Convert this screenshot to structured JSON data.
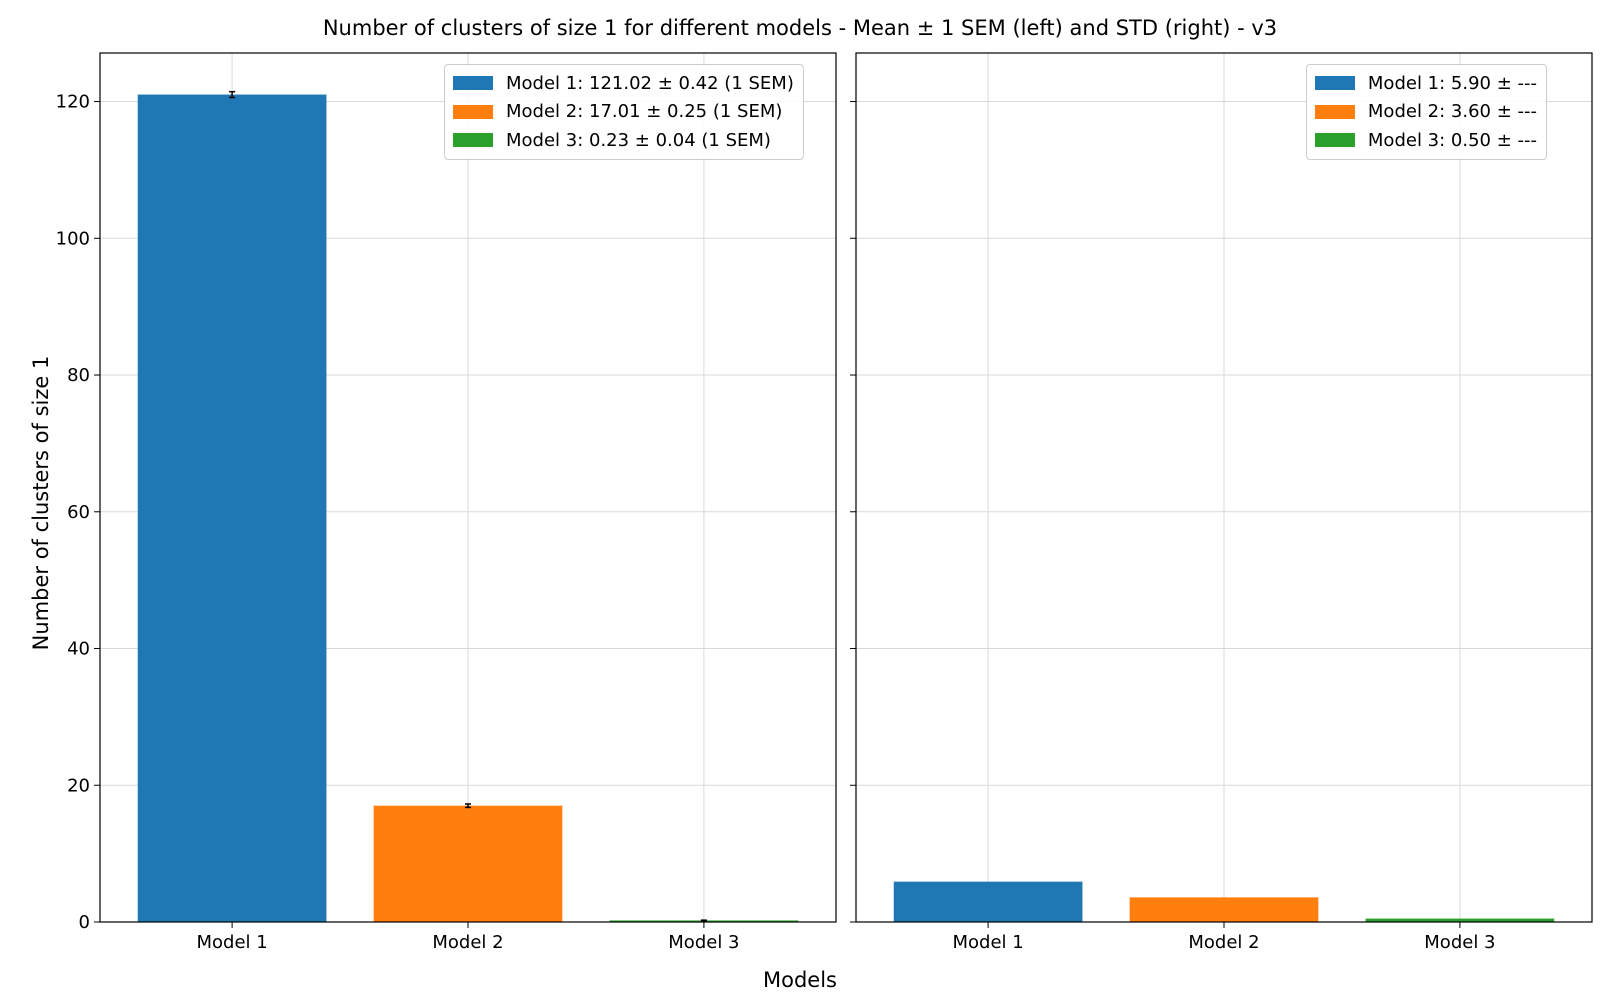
{
  "figure": {
    "title": "Number of clusters of size 1 for different models - Mean ± 1 SEM (left) and STD (right) - v3",
    "xlabel": "Models",
    "ylabel": "Number of clusters of size 1"
  },
  "chart_data": [
    {
      "type": "bar",
      "panel": "left",
      "categories": [
        "Model 1",
        "Model 2",
        "Model 3"
      ],
      "values": [
        121.02,
        17.01,
        0.23
      ],
      "error": [
        0.42,
        0.25,
        0.04
      ],
      "colors": [
        "#1f77b4",
        "#ff7f0e",
        "#2ca02c"
      ],
      "ylim": [
        0,
        127.1
      ],
      "yticks": [
        0,
        20,
        40,
        60,
        80,
        100,
        120
      ],
      "grid": true,
      "legend_position": "top-right",
      "legend": [
        "Model 1: 121.02 ± 0.42 (1 SEM)",
        "Model 2: 17.01 ± 0.25 (1 SEM)",
        "Model 3: 0.23 ± 0.04 (1 SEM)"
      ]
    },
    {
      "type": "bar",
      "panel": "right",
      "categories": [
        "Model 1",
        "Model 2",
        "Model 3"
      ],
      "values": [
        5.9,
        3.6,
        0.5
      ],
      "colors": [
        "#1f77b4",
        "#ff7f0e",
        "#2ca02c"
      ],
      "ylim": [
        0,
        127.1
      ],
      "sharey": true,
      "grid": true,
      "legend_position": "top-right",
      "legend": [
        "Model 1: 5.90 ± ---",
        "Model 2: 3.60 ± ---",
        "Model 3: 0.50 ± ---"
      ]
    }
  ]
}
